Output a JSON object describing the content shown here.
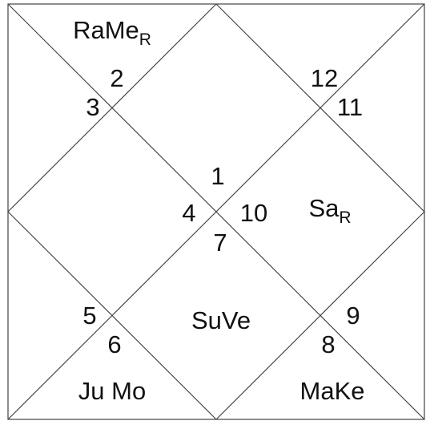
{
  "houses": [
    "1",
    "2",
    "3",
    "4",
    "5",
    "6",
    "7",
    "8",
    "9",
    "10",
    "11",
    "12"
  ],
  "planets": [
    {
      "text": "RaMe",
      "subscript": "R"
    },
    {
      "text": "Sa",
      "subscript": "R"
    },
    {
      "text": "SuVe"
    },
    {
      "text": "Ju Mo"
    },
    {
      "text": "MaKe"
    }
  ]
}
